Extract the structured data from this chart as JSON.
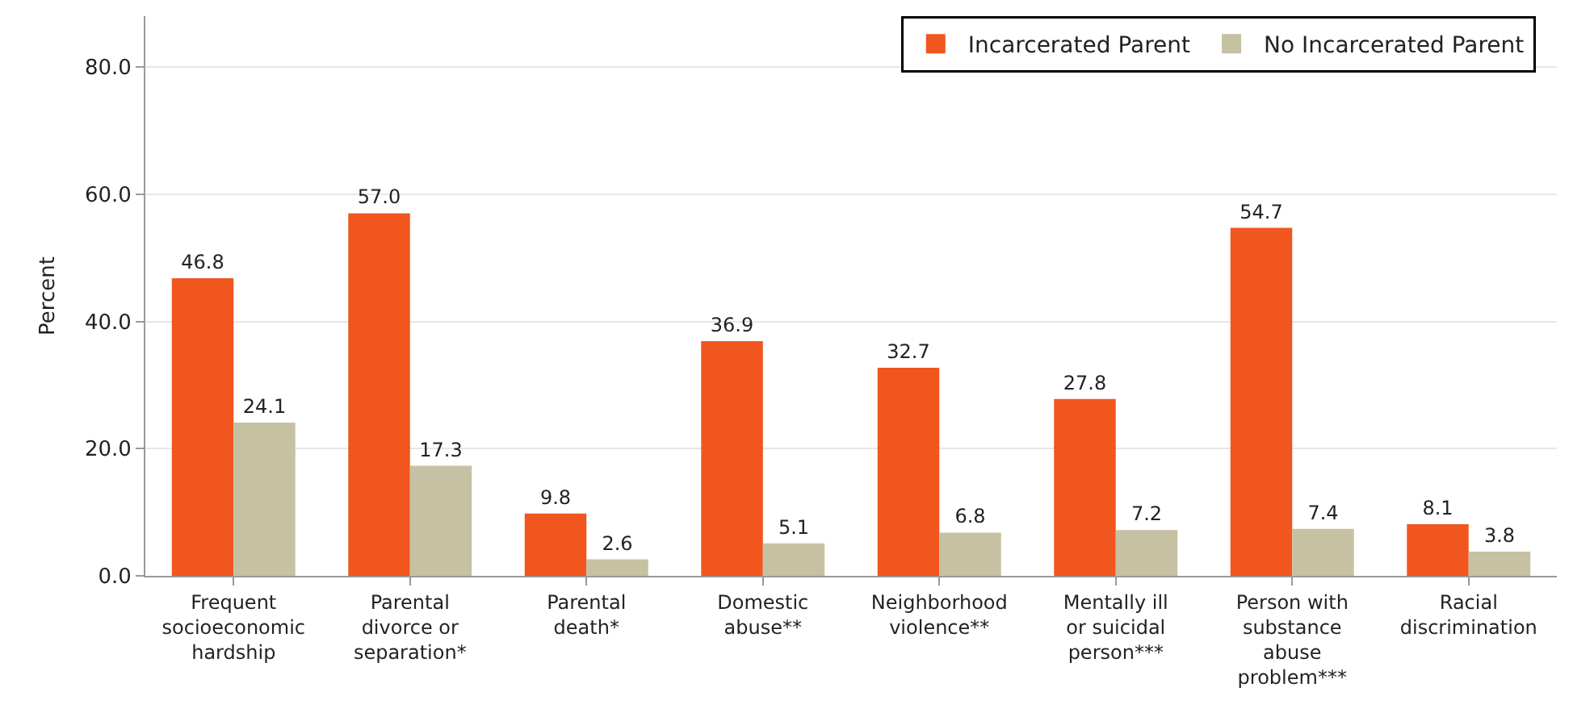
{
  "chart_data": {
    "type": "bar",
    "ylabel": "Percent",
    "categories": [
      "Frequent socioeconomic hardship",
      "Parental divorce or separation*",
      "Parental death*",
      "Domestic abuse**",
      "Neighborhood violence**",
      "Mentally ill or suicidal person***",
      "Person with substance abuse problem***",
      "Racial discrimination"
    ],
    "series": [
      {
        "name": "Incarcerated Parent",
        "color": "#f0561e",
        "values": [
          46.8,
          57.0,
          9.8,
          36.9,
          32.7,
          27.8,
          54.7,
          8.1
        ],
        "value_labels": [
          "46.8",
          "57.0",
          "9.8",
          "36.9",
          "32.7",
          "27.8",
          "54.7",
          "8.1"
        ]
      },
      {
        "name": "No Incarcerated Parent",
        "color": "#c6c1a2",
        "values": [
          24.1,
          17.3,
          2.6,
          5.1,
          6.8,
          7.2,
          7.4,
          3.8
        ],
        "value_labels": [
          "24.1",
          "17.3",
          "2.6",
          "5.1",
          "6.8",
          "7.2",
          "7.4",
          "3.8"
        ]
      }
    ],
    "ylim": [
      0,
      88
    ],
    "yticks": [
      {
        "value": 0,
        "label": "0.0"
      },
      {
        "value": 20,
        "label": "20.0"
      },
      {
        "value": 40,
        "label": "40.0"
      },
      {
        "value": 60,
        "label": "60.0"
      },
      {
        "value": 80,
        "label": "80.0"
      }
    ],
    "grid": "y",
    "legend": "top right"
  }
}
